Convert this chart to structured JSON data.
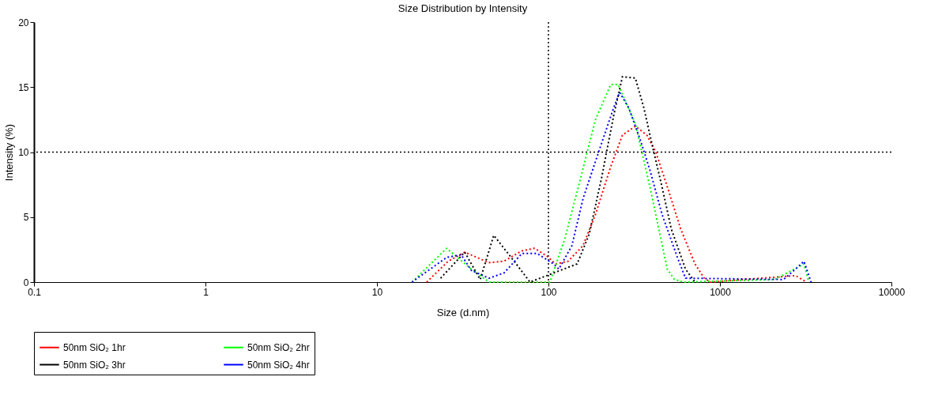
{
  "chart_data": {
    "type": "line",
    "title": "Size Distribution by Intensity",
    "xlabel": "Size (d.nm)",
    "ylabel": "Intensity (%)",
    "log": "x",
    "xlim": [
      0.1,
      10000
    ],
    "xticks": [
      0.1,
      1,
      10,
      100,
      1000,
      10000
    ],
    "ylim": [
      0,
      20
    ],
    "yticks": [
      0,
      5,
      10,
      15,
      20
    ],
    "grid": false,
    "legend": "bottom",
    "line_style": "dotted",
    "marker": "none",
    "ref_lines": [
      {
        "axis": "y",
        "value": 10,
        "color": "#000000",
        "line_style": "dotted"
      },
      {
        "axis": "x",
        "value": 100,
        "color": "#000000",
        "line_style": "dotted"
      }
    ],
    "series": [
      {
        "name": "50nm SiO₂ 1hr",
        "color": "#ff0000",
        "x": [
          19.5,
          26,
          32.5,
          45,
          55,
          70,
          83,
          98,
          110,
          130,
          159,
          188,
          231,
          270,
          321,
          375,
          423,
          500,
          590,
          715,
          810,
          880,
          2760,
          3200
        ],
        "values": [
          0,
          1.6,
          2.3,
          1.5,
          1.6,
          2.4,
          2.6,
          2.0,
          1.4,
          1.6,
          2.8,
          5.2,
          8.9,
          11.3,
          12.0,
          11.3,
          10.0,
          7.1,
          4.1,
          1.4,
          0.3,
          0,
          0.5,
          0
        ]
      },
      {
        "name": "50nm SiO₂ 2hr",
        "color": "#00ff00",
        "x": [
          16,
          25.5,
          35.5,
          45,
          102,
          125,
          154,
          188,
          231,
          255,
          321,
          391,
          493,
          543,
          616,
          2090,
          3090,
          3300
        ],
        "values": [
          0,
          2.6,
          1.0,
          0,
          0,
          3.4,
          8.0,
          12.5,
          15.2,
          15.2,
          12.2,
          7.3,
          1.0,
          0.2,
          0,
          0.2,
          1.4,
          0
        ]
      },
      {
        "name": "50nm SiO₂ 3hr",
        "color": "#000000",
        "x": [
          23.5,
          32.5,
          40,
          48,
          64,
          78,
          147,
          173,
          204,
          240,
          270,
          321,
          360,
          405,
          460,
          520,
          630,
          715
        ],
        "values": [
          0.3,
          2.3,
          0.2,
          3.6,
          1.5,
          0,
          1.4,
          3.7,
          8.0,
          12.8,
          15.8,
          15.7,
          13.4,
          10.4,
          7.3,
          4.1,
          1.0,
          0
        ]
      },
      {
        "name": "50nm SiO₂ 4hr",
        "color": "#0000ff",
        "x": [
          16,
          25.5,
          31,
          35.5,
          45,
          55,
          70,
          86,
          107,
          115,
          137,
          159,
          196,
          240,
          260,
          294,
          342,
          391,
          460,
          565,
          630,
          2350,
          2760,
          3090,
          3400
        ],
        "values": [
          0,
          1.9,
          2.1,
          0.9,
          0.3,
          0.7,
          2.2,
          2.2,
          1.4,
          1.0,
          2.8,
          6.4,
          10.0,
          13.4,
          14.6,
          13.4,
          11.0,
          8.6,
          5.2,
          1.9,
          0.3,
          0.2,
          1.0,
          1.6,
          0
        ]
      }
    ]
  }
}
